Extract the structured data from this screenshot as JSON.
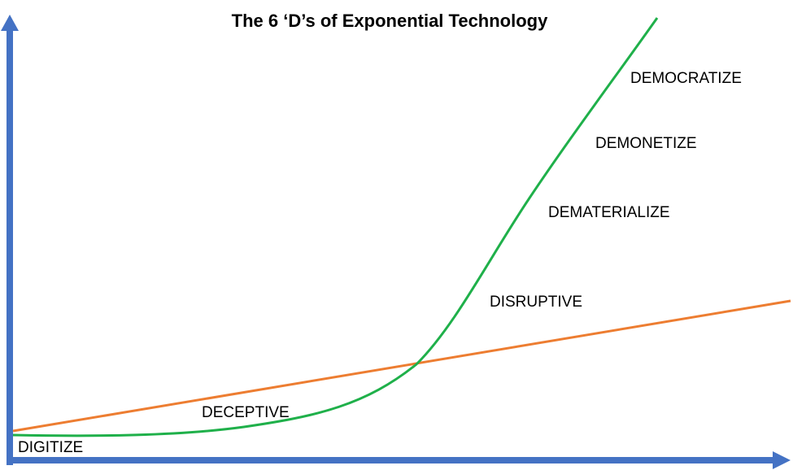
{
  "title": "The 6 ‘D’s of Exponential Technology",
  "stages": [
    "DIGITIZE",
    "DECEPTIVE",
    "DISRUPTIVE",
    "DEMATERIALIZE",
    "DEMONETIZE",
    "DEMOCRATIZE"
  ],
  "colors": {
    "axes": "#4472c4",
    "linear_curve": "#ed7d31",
    "exponential_curve": "#1fb04a",
    "text": "#000000"
  }
}
